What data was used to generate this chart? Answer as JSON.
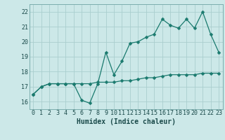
{
  "title": "",
  "xlabel": "Humidex (Indice chaleur)",
  "ylabel": "",
  "bg_color": "#cce8e8",
  "grid_color": "#aacece",
  "line_color": "#1a7a6e",
  "x_line1": [
    0,
    1,
    2,
    3,
    4,
    5,
    6,
    7,
    8,
    9,
    10,
    11,
    12,
    13,
    14,
    15,
    16,
    17,
    18,
    19,
    20,
    21,
    22,
    23
  ],
  "y_line1": [
    16.5,
    17.0,
    17.2,
    17.2,
    17.2,
    17.2,
    16.1,
    15.9,
    17.2,
    19.3,
    17.8,
    18.7,
    19.9,
    20.0,
    20.3,
    20.5,
    21.5,
    21.1,
    20.9,
    21.5,
    20.9,
    22.0,
    20.5,
    19.3
  ],
  "x_line2": [
    0,
    1,
    2,
    3,
    4,
    5,
    6,
    7,
    8,
    9,
    10,
    11,
    12,
    13,
    14,
    15,
    16,
    17,
    18,
    19,
    20,
    21,
    22,
    23
  ],
  "y_line2": [
    16.5,
    17.0,
    17.2,
    17.2,
    17.2,
    17.2,
    17.2,
    17.2,
    17.3,
    17.3,
    17.3,
    17.4,
    17.4,
    17.5,
    17.6,
    17.6,
    17.7,
    17.8,
    17.8,
    17.8,
    17.8,
    17.9,
    17.9,
    17.9
  ],
  "ylim": [
    15.5,
    22.5
  ],
  "yticks": [
    16,
    17,
    18,
    19,
    20,
    21,
    22
  ],
  "xlim": [
    -0.5,
    23.5
  ],
  "xticks": [
    0,
    1,
    2,
    3,
    4,
    5,
    6,
    7,
    8,
    9,
    10,
    11,
    12,
    13,
    14,
    15,
    16,
    17,
    18,
    19,
    20,
    21,
    22,
    23
  ],
  "tick_fontsize": 6.0,
  "xlabel_fontsize": 7.0,
  "marker_size": 2.5,
  "line_width": 0.9
}
